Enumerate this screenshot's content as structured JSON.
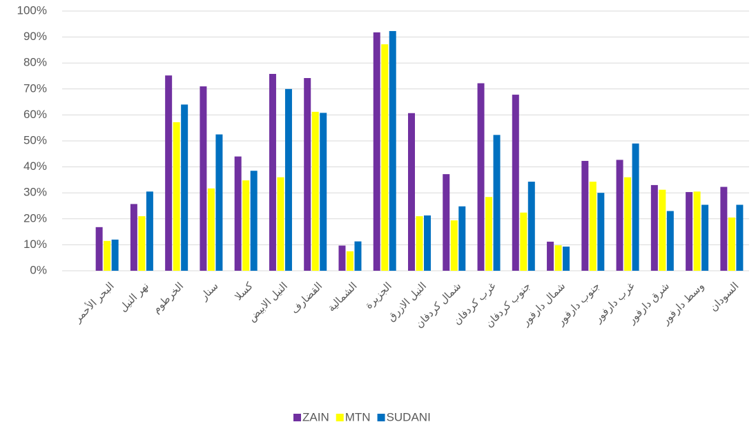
{
  "chart_data": {
    "type": "bar",
    "categories": [
      "البحر الأحمر",
      "نهر النيل",
      "الخرطوم",
      "سنار",
      "كسلا",
      "النيل الابيض",
      "القضارف",
      "الشمالية",
      "الجزيرة",
      "النيل الازرق",
      "شمال كردفان",
      "غرب كردفان",
      "جنوب كردفان",
      "شمال دارفور",
      "جنوب دارفور",
      "غرب دارفور",
      "شرق دارفور",
      "وسط دارفور",
      "السودان"
    ],
    "series": [
      {
        "name": "ZAIN",
        "color": "#7030a0",
        "values": [
          16.8,
          25.7,
          75.2,
          71,
          44,
          75.8,
          74.2,
          9.7,
          91.8,
          60.7,
          37.2,
          72.2,
          67.8,
          11.2,
          42.3,
          42.7,
          33,
          30.3,
          32.3
        ]
      },
      {
        "name": "MTN",
        "color": "#ffff00",
        "values": [
          11.5,
          21,
          57.2,
          31.7,
          34.8,
          36,
          61.2,
          7.5,
          87.2,
          21,
          19.4,
          28.4,
          22.4,
          9.8,
          34.3,
          36,
          31.2,
          30.5,
          20.5
        ]
      },
      {
        "name": "SUDANI",
        "color": "#0070c0",
        "values": [
          12,
          30.5,
          64,
          52.5,
          38.5,
          70,
          60.8,
          11.3,
          92.3,
          21.3,
          24.8,
          52.3,
          34.3,
          9.3,
          30,
          49,
          23,
          25.4,
          25.4
        ]
      }
    ],
    "ylim": [
      0,
      100
    ],
    "yticks": [
      {
        "value": 0,
        "label": "0%"
      },
      {
        "value": 10,
        "label": "10%"
      },
      {
        "value": 20,
        "label": "20%"
      },
      {
        "value": 30,
        "label": "30%"
      },
      {
        "value": 40,
        "label": "40%"
      },
      {
        "value": 50,
        "label": "50%"
      },
      {
        "value": 60,
        "label": "60%"
      },
      {
        "value": 70,
        "label": "70%"
      },
      {
        "value": 80,
        "label": "80%"
      },
      {
        "value": 90,
        "label": "90%"
      },
      {
        "value": 100,
        "label": "100%"
      }
    ],
    "grid": true,
    "legend": "bottom"
  }
}
